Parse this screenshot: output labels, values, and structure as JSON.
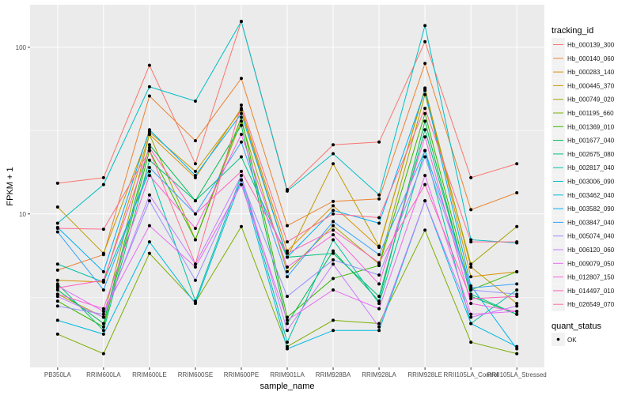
{
  "chart_data": {
    "type": "line",
    "title": "",
    "xlabel": "sample_name",
    "ylabel": "FPKM + 1",
    "yscale": "log10",
    "ylim": [
      1.2,
      180
    ],
    "yticks": [
      10,
      100
    ],
    "ytick_labels": [
      "10",
      "100"
    ],
    "grid": true,
    "legend_placement": "right",
    "categories": [
      "PB350LA",
      "RRIM600LA",
      "RRIM600LE",
      "RRIM600SE",
      "RRIM600PE",
      "RRIM901LA",
      "RRIM928BA",
      "RRIM928LA",
      "RRIM928LE",
      "RRII105LA_Control",
      "RRII105LA_Stressed"
    ],
    "legend_title": "tracking_id",
    "series": [
      {
        "name": "Hb_000139_300",
        "color": "#F8766D",
        "values": [
          15.3,
          16.5,
          78,
          20,
          143,
          14,
          26,
          27,
          108,
          16.5,
          20
        ]
      },
      {
        "name": "Hb_000140_060",
        "color": "#EA8331",
        "values": [
          4.6,
          5.7,
          51,
          27.5,
          65,
          8.5,
          11.9,
          12.3,
          80,
          10.6,
          13.4
        ]
      },
      {
        "name": "Hb_000283_140",
        "color": "#D89000",
        "values": [
          4.0,
          3.9,
          30,
          16.5,
          43,
          6.0,
          11.2,
          6.3,
          57,
          4.2,
          4.5
        ]
      },
      {
        "name": "Hb_000445_370",
        "color": "#C09B00",
        "values": [
          11,
          5.8,
          31,
          18,
          42,
          5.5,
          20,
          6.4,
          56,
          4.8,
          2.9
        ]
      },
      {
        "name": "Hb_000749_020",
        "color": "#A3A500",
        "values": [
          3.3,
          2.4,
          30,
          7.0,
          36,
          4.5,
          8.5,
          5.0,
          52,
          5.0,
          8.4
        ]
      },
      {
        "name": "Hb_001195_660",
        "color": "#7CAE00",
        "values": [
          1.9,
          1.45,
          5.8,
          2.95,
          8.4,
          1.6,
          2.3,
          2.2,
          8.0,
          1.7,
          1.45
        ]
      },
      {
        "name": "Hb_001369_010",
        "color": "#39B600",
        "values": [
          3.0,
          2.1,
          24,
          7.0,
          38,
          2.4,
          4.1,
          4.9,
          40,
          3.5,
          4.5
        ]
      },
      {
        "name": "Hb_001677_040",
        "color": "#00BB4E",
        "values": [
          3.5,
          2.2,
          26,
          12,
          34,
          2.2,
          6.0,
          3.0,
          36,
          3.2,
          2.5
        ]
      },
      {
        "name": "Hb_002675_080",
        "color": "#00BF7D",
        "values": [
          3.8,
          2.0,
          21,
          12,
          22,
          5.5,
          5.8,
          3.2,
          32,
          3.3,
          2.5
        ]
      },
      {
        "name": "Hb_002817_040",
        "color": "#00C1A3",
        "values": [
          5.0,
          3.9,
          18,
          3.0,
          17,
          1.7,
          7.0,
          2.9,
          24,
          2.2,
          3.5
        ]
      },
      {
        "name": "Hb_003006_090",
        "color": "#00BFC4",
        "values": [
          8.8,
          15,
          58,
          47.5,
          143,
          13.7,
          23,
          13,
          135,
          7,
          6.7
        ]
      },
      {
        "name": "Hb_003462_040",
        "color": "#00BAE0",
        "values": [
          2.3,
          1.9,
          6.8,
          2.9,
          16,
          1.55,
          2.0,
          2.0,
          12,
          2.2,
          1.6
        ]
      },
      {
        "name": "Hb_003582_090",
        "color": "#00B0F6",
        "values": [
          8.3,
          4.5,
          32,
          17,
          40,
          5.5,
          10.5,
          8.8,
          55,
          3.7,
          1.55
        ]
      },
      {
        "name": "Hb_003847_040",
        "color": "#35A2FF",
        "values": [
          7.8,
          3.5,
          19,
          10,
          27,
          4.2,
          9,
          5.7,
          24,
          3.6,
          3.8
        ]
      },
      {
        "name": "Hb_005074_040",
        "color": "#9590FF",
        "values": [
          2.8,
          2.5,
          12,
          4.0,
          16,
          3.2,
          5.3,
          4.3,
          22,
          3.5,
          3.3
        ]
      },
      {
        "name": "Hb_006120_060",
        "color": "#C77CFF",
        "values": [
          3.2,
          2.4,
          13,
          5.0,
          17,
          2.0,
          5.0,
          2.1,
          12,
          2.4,
          2.8
        ]
      },
      {
        "name": "Hb_009079_050",
        "color": "#E76BF3",
        "values": [
          3.7,
          2.6,
          8.5,
          4.8,
          15,
          2.3,
          3.5,
          2.7,
          17,
          2.5,
          2.6
        ]
      },
      {
        "name": "Hb_012807_150",
        "color": "#FA62DB",
        "values": [
          3.3,
          2.7,
          17,
          8.2,
          30,
          4.8,
          7.5,
          3.8,
          29,
          2.9,
          2.6
        ]
      },
      {
        "name": "Hb_014497_010",
        "color": "#FF62BC",
        "values": [
          3.6,
          4.0,
          25,
          10,
          18,
          5.8,
          8,
          5.1,
          15,
          3.1,
          3.2
        ]
      },
      {
        "name": "Hb_026549_070",
        "color": "#FF6C91",
        "values": [
          8.2,
          8.1,
          24,
          5.0,
          45,
          6.8,
          10,
          9.5,
          43,
          6.8,
          6.8
        ]
      }
    ],
    "shape_legend": {
      "title": "quant_status",
      "items": [
        "OK"
      ]
    }
  }
}
